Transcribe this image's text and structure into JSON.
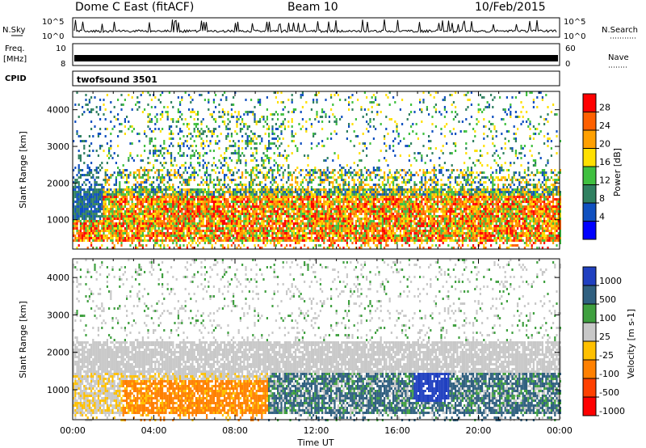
{
  "header": {
    "station": "Dome C East (fitACF)",
    "beam": "Beam 10",
    "date": "10/Feb/2015"
  },
  "strips": {
    "nsky_label": "N.Sky",
    "nsky_ticks": [
      "10^5",
      "10^0"
    ],
    "nsearch_label": "N.Search",
    "freq_label_1": "Freq.",
    "freq_label_2": "[MHz]",
    "freq_ticks": [
      "10",
      "8"
    ],
    "nave_label": "Nave",
    "nave_ticks": [
      "60",
      "0"
    ],
    "cpid_label": "CPID",
    "cpid_value": "twofsound 3501"
  },
  "chart_data": [
    {
      "type": "heatmap",
      "ylabel": "Slant Range [km]",
      "yticks": [
        1000,
        2000,
        3000,
        4000
      ],
      "ylim": [
        200,
        4500
      ],
      "xticks": [
        "00:00",
        "04:00",
        "08:00",
        "12:00",
        "16:00",
        "20:00",
        "00:00"
      ],
      "colorbar": {
        "label": "Power [dB]",
        "ticks": [
          "28",
          "24",
          "20",
          "16",
          "12",
          "8",
          "4"
        ],
        "colors": [
          "#ff0000",
          "#ff6000",
          "#ffa000",
          "#ffe000",
          "#40c040",
          "#308060",
          "#1050c0",
          "#0000ff"
        ]
      }
    },
    {
      "type": "heatmap",
      "ylabel": "Slant Range [km]",
      "yticks": [
        1000,
        2000,
        3000,
        4000
      ],
      "ylim": [
        200,
        4500
      ],
      "xticks": [
        "00:00",
        "04:00",
        "08:00",
        "12:00",
        "16:00",
        "20:00",
        "00:00"
      ],
      "xlabel": "Time UT",
      "colorbar": {
        "label": "Velocity [m s-1]",
        "ticks": [
          "1000",
          "500",
          "100",
          "25",
          "-25",
          "-100",
          "-500",
          "-1000"
        ],
        "colors": [
          "#2040c0",
          "#306080",
          "#40a040",
          "#c8c8c8",
          "#ffc000",
          "#ff8000",
          "#ff4000",
          "#ff0000"
        ]
      }
    }
  ]
}
